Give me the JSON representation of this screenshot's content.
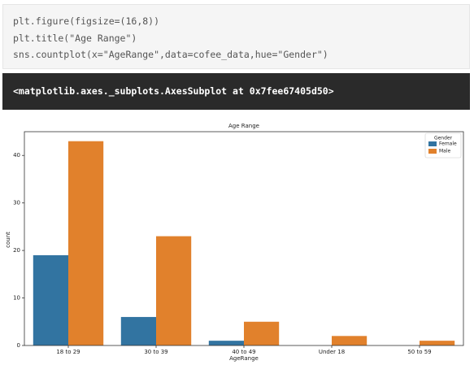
{
  "code": {
    "lines": [
      "plt.figure(figsize=(16,8))",
      "plt.title(\"Age Range\")",
      "sns.countplot(x=\"AgeRange\",data=cofee_data,hue=\"Gender\")"
    ]
  },
  "output": "<matplotlib.axes._subplots.AxesSubplot at 0x7fee67405d50>",
  "chart_data": {
    "type": "bar",
    "title": "Age Range",
    "x_label": "AgeRange",
    "y_label": "count",
    "categories": [
      "18 to 29",
      "30 to 39",
      "40 to 49",
      "Under 18",
      "50 to 59"
    ],
    "series": [
      {
        "name": "Female",
        "color": "#3274a1",
        "values": [
          19,
          6,
          1,
          0,
          0
        ]
      },
      {
        "name": "Male",
        "color": "#e1812c",
        "values": [
          43,
          23,
          5,
          2,
          1
        ]
      }
    ],
    "ylim": [
      0,
      45
    ],
    "yticks": [
      0,
      10,
      20,
      30,
      40
    ],
    "legend": {
      "title": "Gender",
      "position": "upper right"
    }
  }
}
